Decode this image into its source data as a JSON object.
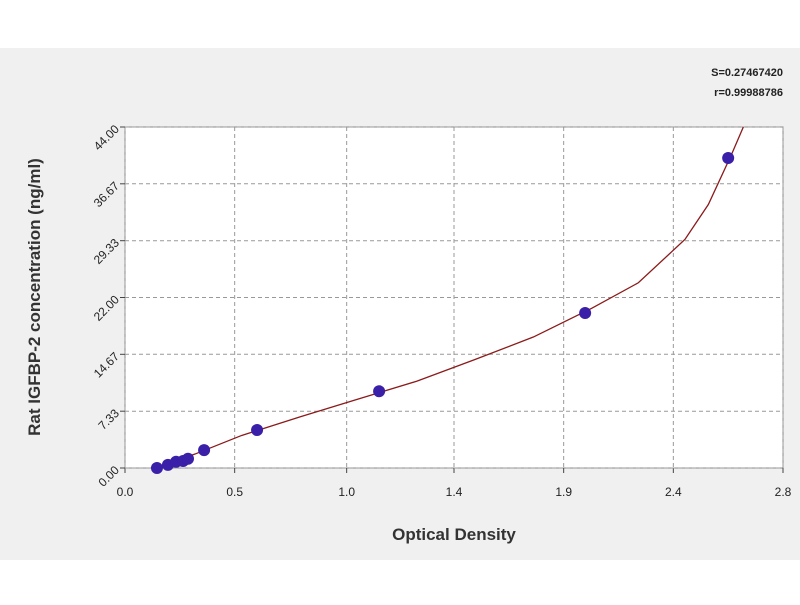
{
  "chart_data": {
    "type": "scatter",
    "x_label": "Optical Density",
    "y_label": "Rat IGFBP-2 concentration (ng/ml)",
    "annotations": [
      "S=0.27467420",
      "r=0.99988786"
    ],
    "xlim": [
      0,
      2.82
    ],
    "ylim": [
      0,
      44
    ],
    "xticks": [
      {
        "value": 0,
        "label": "0.0"
      },
      {
        "value": 0.47,
        "label": "0.5"
      },
      {
        "value": 0.95,
        "label": "1.0"
      },
      {
        "value": 1.41,
        "label": "1.4"
      },
      {
        "value": 1.88,
        "label": "1.9"
      },
      {
        "value": 2.35,
        "label": "2.4"
      },
      {
        "value": 2.82,
        "label": "2.8"
      }
    ],
    "yticks": [
      {
        "value": 0,
        "label": "0.00"
      },
      {
        "value": 7.33,
        "label": "7.33"
      },
      {
        "value": 14.67,
        "label": "14.67"
      },
      {
        "value": 22,
        "label": "22.00"
      },
      {
        "value": 29.33,
        "label": "29.33"
      },
      {
        "value": 36.67,
        "label": "36.67"
      },
      {
        "value": 44,
        "label": "44.00"
      }
    ],
    "grid": true,
    "series": [
      {
        "color": "#3a1fa8",
        "x": [
          0.137,
          0.184,
          0.219,
          0.249,
          0.27,
          0.339,
          0.566,
          1.089,
          1.972,
          2.585
        ],
        "values": [
          0,
          0.4,
          0.8,
          0.9,
          1.2,
          2.3,
          4.9,
          9.9,
          20.0,
          40.0
        ]
      }
    ],
    "curve": {
      "color": "#8b1a1a",
      "x": [
        0.13,
        0.3,
        0.5,
        0.75,
        1.0,
        1.25,
        1.5,
        1.75,
        2.0,
        2.2,
        2.4,
        2.5,
        2.6,
        2.65
      ],
      "values": [
        0,
        1.8,
        4.2,
        6.6,
        8.9,
        11.2,
        14.0,
        16.9,
        20.6,
        23.9,
        29.5,
        34,
        40.5,
        44
      ]
    }
  }
}
